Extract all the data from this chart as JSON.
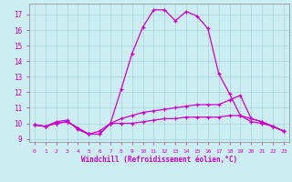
{
  "xlabel": "Windchill (Refroidissement éolien,°C)",
  "background_color": "#cceef2",
  "grid_color": "#aad4da",
  "line_color": "#cc00cc",
  "xlim": [
    -0.5,
    23.5
  ],
  "ylim": [
    8.8,
    17.7
  ],
  "yticks": [
    9,
    10,
    11,
    12,
    13,
    14,
    15,
    16,
    17
  ],
  "xticks": [
    0,
    1,
    2,
    3,
    4,
    5,
    6,
    7,
    8,
    9,
    10,
    11,
    12,
    13,
    14,
    15,
    16,
    17,
    18,
    19,
    20,
    21,
    22,
    23
  ],
  "series": [
    {
      "x": [
        0,
        1,
        2,
        3,
        4,
        5,
        6,
        7,
        8,
        9,
        10,
        11,
        12,
        13,
        14,
        15,
        16,
        17,
        18,
        19,
        20,
        21,
        22,
        23
      ],
      "y": [
        9.9,
        9.8,
        10.0,
        10.1,
        9.7,
        9.3,
        9.3,
        10.0,
        10.0,
        10.0,
        10.1,
        10.2,
        10.3,
        10.3,
        10.4,
        10.4,
        10.4,
        10.4,
        10.5,
        10.5,
        10.1,
        10.0,
        9.8,
        9.5
      ]
    },
    {
      "x": [
        0,
        1,
        2,
        3,
        4,
        5,
        6,
        7,
        8,
        9,
        10,
        11,
        12,
        13,
        14,
        15,
        16,
        17,
        18,
        19,
        20,
        21,
        22,
        23
      ],
      "y": [
        9.9,
        9.8,
        10.0,
        10.1,
        9.7,
        9.3,
        9.3,
        10.0,
        10.3,
        10.5,
        10.7,
        10.8,
        10.9,
        11.0,
        11.1,
        11.2,
        11.2,
        11.2,
        11.5,
        11.8,
        10.3,
        10.1,
        9.8,
        9.5
      ]
    },
    {
      "x": [
        0,
        1,
        2,
        3,
        4,
        5,
        6,
        7,
        8,
        9,
        10,
        11,
        12,
        13,
        14,
        15,
        16,
        17,
        18,
        19,
        20,
        21,
        22,
        23
      ],
      "y": [
        9.9,
        9.8,
        10.1,
        10.2,
        9.6,
        9.3,
        9.5,
        10.0,
        12.2,
        14.5,
        16.2,
        17.3,
        17.3,
        16.6,
        17.2,
        16.9,
        16.1,
        13.2,
        11.9,
        10.5,
        10.3,
        10.1,
        9.8,
        9.5
      ]
    }
  ]
}
